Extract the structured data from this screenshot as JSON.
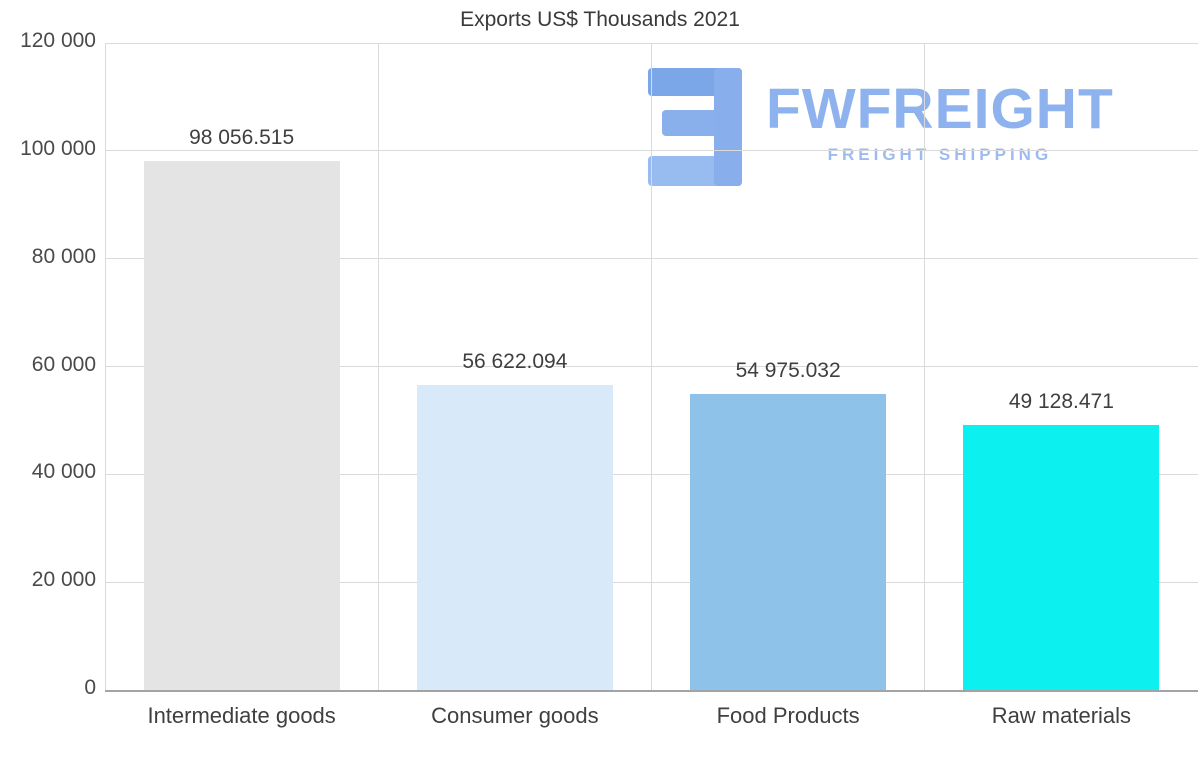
{
  "chart_data": {
    "type": "bar",
    "title": "Exports US$ Thousands 2021",
    "categories": [
      "Intermediate goods",
      "Consumer goods",
      "Food Products",
      "Raw materials"
    ],
    "values": [
      98056.515,
      56622.094,
      54975.032,
      49128.471
    ],
    "value_labels": [
      "98 056.515",
      "56 622.094",
      "54 975.032",
      "49 128.471"
    ],
    "bar_colors": [
      "#e4e4e5",
      "#d8e9f9",
      "#8fc2e8",
      "#0cf0f0"
    ],
    "ylim": [
      0,
      120000
    ],
    "yticks": [
      {
        "value": 0,
        "label": "0"
      },
      {
        "value": 20000,
        "label": "20 000"
      },
      {
        "value": 40000,
        "label": "40 000"
      },
      {
        "value": 60000,
        "label": "60 000"
      },
      {
        "value": 80000,
        "label": "80 000"
      },
      {
        "value": 100000,
        "label": "100 000"
      },
      {
        "value": 120000,
        "label": "120 000"
      }
    ],
    "grid": true,
    "legend": false
  },
  "logo": {
    "text": "FWFREIGHT",
    "subtitle": "FREIGHT SHIPPING",
    "color": "#8db2ee"
  }
}
